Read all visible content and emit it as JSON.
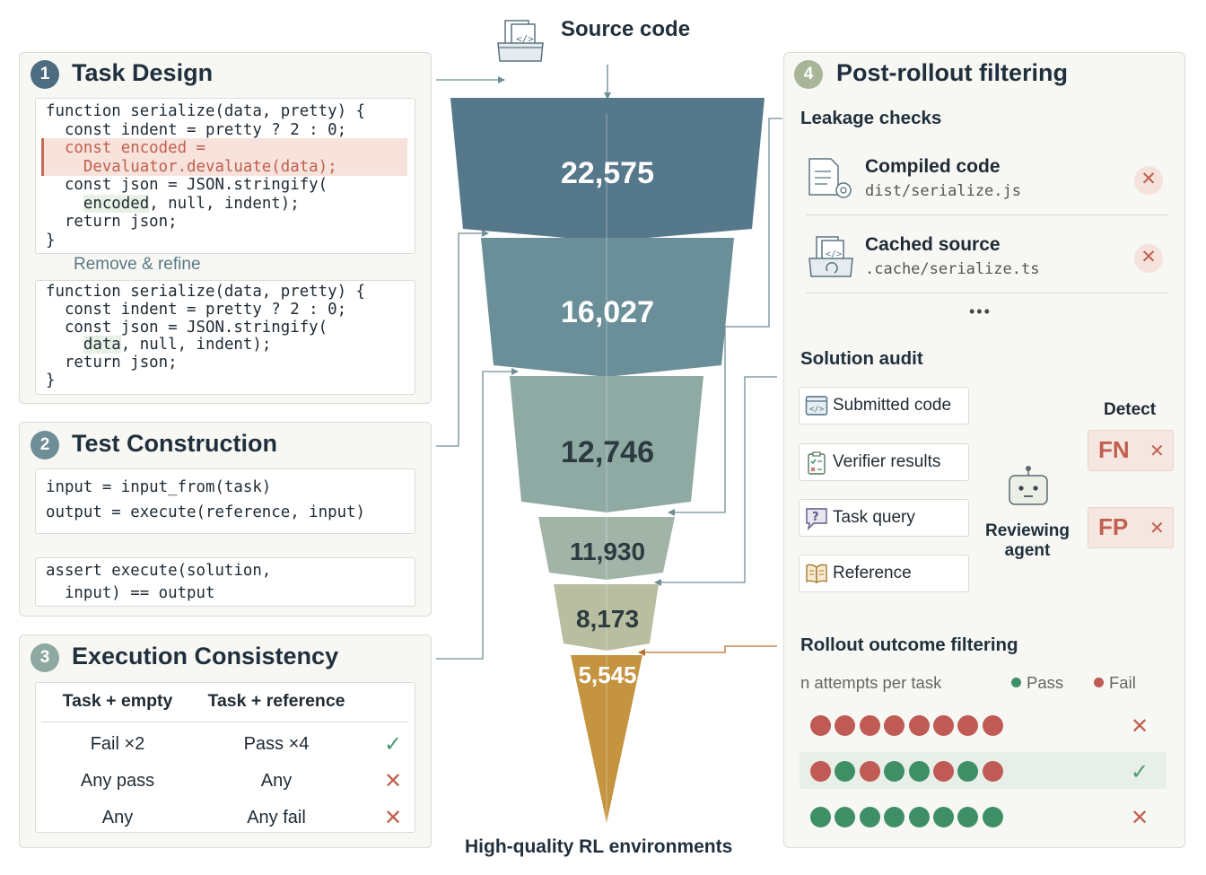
{
  "source": {
    "title": "Source code",
    "icon": "code-folder-icon"
  },
  "bottom_label": "High-quality RL environments",
  "funnel": [
    {
      "value": "22,575",
      "color": "#56788b"
    },
    {
      "value": "16,027",
      "color": "#6a8f99"
    },
    {
      "value": "12,746",
      "color": "#8fa9a3"
    },
    {
      "value": "11,930",
      "color": "#a2b4a8"
    },
    {
      "value": "8,173",
      "color": "#b9bea1"
    },
    {
      "value": "5,545",
      "color": "#c49440"
    }
  ],
  "task_design": {
    "number": "1",
    "title": "Task Design",
    "before": {
      "line1": "function serialize(data, pretty) {",
      "line2": "  const indent = pretty ? 2 : 0;",
      "line3": "  const encoded =",
      "line4": "    Devaluator.devaluate(data);",
      "line5": "  const json = JSON.stringify(",
      "line6_hl": "encoded",
      "line6_rest": ", null, indent);",
      "line7": "  return json;",
      "line8": "}"
    },
    "arrow_label": "Remove & refine",
    "after": {
      "line1": "function serialize(data, pretty) {",
      "line2": "  const indent = pretty ? 2 : 0;",
      "line3": "  const json = JSON.stringify(",
      "line4_hl": "data",
      "line4_rest": ", null, indent);",
      "line5": "  return json;",
      "line6": "}"
    }
  },
  "test_construction": {
    "number": "2",
    "title": "Test Construction",
    "line1": "input = input_from(task)",
    "line2": "output = execute(reference, input)",
    "assert1": "assert execute(solution,",
    "assert2": "  input) == output"
  },
  "execution_consistency": {
    "number": "3",
    "title": "Execution Consistency",
    "headers": [
      "Task + empty",
      "Task + reference"
    ],
    "rows": [
      {
        "empty": "Fail ×2",
        "reference": "Pass ×4",
        "result": "✓"
      },
      {
        "empty": "Any pass",
        "reference": "Any",
        "result": "✕"
      },
      {
        "empty": "Any",
        "reference": "Any fail",
        "result": "✕"
      }
    ]
  },
  "post_rollout": {
    "number": "4",
    "title": "Post-rollout filtering",
    "leakage": {
      "title": "Leakage checks",
      "items": [
        {
          "name": "Compiled code",
          "path": "dist/serialize.js",
          "icon": "compiled-file-icon",
          "result": "✕"
        },
        {
          "name": "Cached source",
          "path": ".cache/serialize.ts",
          "icon": "cached-folder-icon",
          "result": "✕"
        }
      ],
      "more": "•••"
    },
    "audit": {
      "title": "Solution audit",
      "inputs": [
        {
          "label": "Submitted code",
          "icon": "code-window-icon"
        },
        {
          "label": "Verifier results",
          "icon": "clipboard-check-icon"
        },
        {
          "label": "Task query",
          "icon": "question-bubble-icon"
        },
        {
          "label": "Reference",
          "icon": "book-icon"
        }
      ],
      "agent_line1": "Reviewing",
      "agent_line2": "agent",
      "detect_title": "Detect",
      "detect": [
        {
          "label": "FN",
          "result": "✕"
        },
        {
          "label": "FP",
          "result": "✕"
        }
      ]
    },
    "rollout": {
      "title": "Rollout outcome filtering",
      "subtitle": "n attempts per task",
      "legend_pass": "Pass",
      "legend_fail": "Fail",
      "pass_color": "#3e8f65",
      "fail_color": "#bf5a55",
      "rows": [
        {
          "outcomes": [
            "F",
            "F",
            "F",
            "F",
            "F",
            "F",
            "F",
            "F"
          ],
          "result": "✕"
        },
        {
          "outcomes": [
            "F",
            "P",
            "F",
            "P",
            "P",
            "F",
            "P",
            "F"
          ],
          "result": "✓"
        },
        {
          "outcomes": [
            "P",
            "P",
            "P",
            "P",
            "P",
            "P",
            "P",
            "P"
          ],
          "result": "✕"
        }
      ]
    }
  }
}
